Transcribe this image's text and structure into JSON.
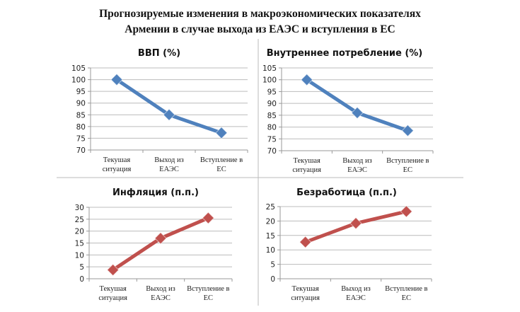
{
  "title_line1": "Прогнозируемые изменения в макроэкономических показателях",
  "title_line2": "Армении в случае выхода из ЕАЭС и вступления в ЕС",
  "chart_data": [
    {
      "type": "line",
      "title": "ВВП (%)",
      "categories": [
        [
          "Текушая",
          "ситуация"
        ],
        [
          "Выход из",
          "ЕАЭС"
        ],
        [
          "Вступление  в",
          "ЕС"
        ]
      ],
      "values": [
        100,
        85,
        77.3
      ],
      "ylim": [
        70,
        105
      ],
      "yticks": [
        70,
        75,
        80,
        85,
        90,
        95,
        100,
        105
      ],
      "color": "#4f81bd",
      "grid": true
    },
    {
      "type": "line",
      "title": "Внутреннее  потребление (%)",
      "categories": [
        [
          "Текушая",
          "ситуация"
        ],
        [
          "Выход из",
          "ЕАЭС"
        ],
        [
          "Вступление  в",
          "ЕС"
        ]
      ],
      "values": [
        100,
        86,
        78.5
      ],
      "ylim": [
        70,
        105
      ],
      "yticks": [
        70,
        75,
        80,
        85,
        90,
        95,
        100,
        105
      ],
      "color": "#4f81bd",
      "grid": true
    },
    {
      "type": "line",
      "title": "Инфляция (п.п.)",
      "categories": [
        [
          "Текушая",
          "ситуация"
        ],
        [
          "Выход из",
          "ЕАЭС"
        ],
        [
          "Вступление  в",
          "ЕС"
        ]
      ],
      "values": [
        3.7,
        17,
        25.5
      ],
      "ylim": [
        0,
        30
      ],
      "yticks": [
        0,
        5,
        10,
        15,
        20,
        25,
        30
      ],
      "color": "#c0504d",
      "grid": true
    },
    {
      "type": "line",
      "title": "Безработица (п.п.)",
      "categories": [
        [
          "Текушая",
          "ситуация"
        ],
        [
          "Выход из",
          "ЕАЭС"
        ],
        [
          "Вступление  в",
          "ЕС"
        ]
      ],
      "values": [
        12.7,
        19.2,
        23.3
      ],
      "ylim": [
        0,
        25
      ],
      "yticks": [
        0,
        5,
        10,
        15,
        20,
        25
      ],
      "color": "#c0504d",
      "grid": true
    }
  ]
}
